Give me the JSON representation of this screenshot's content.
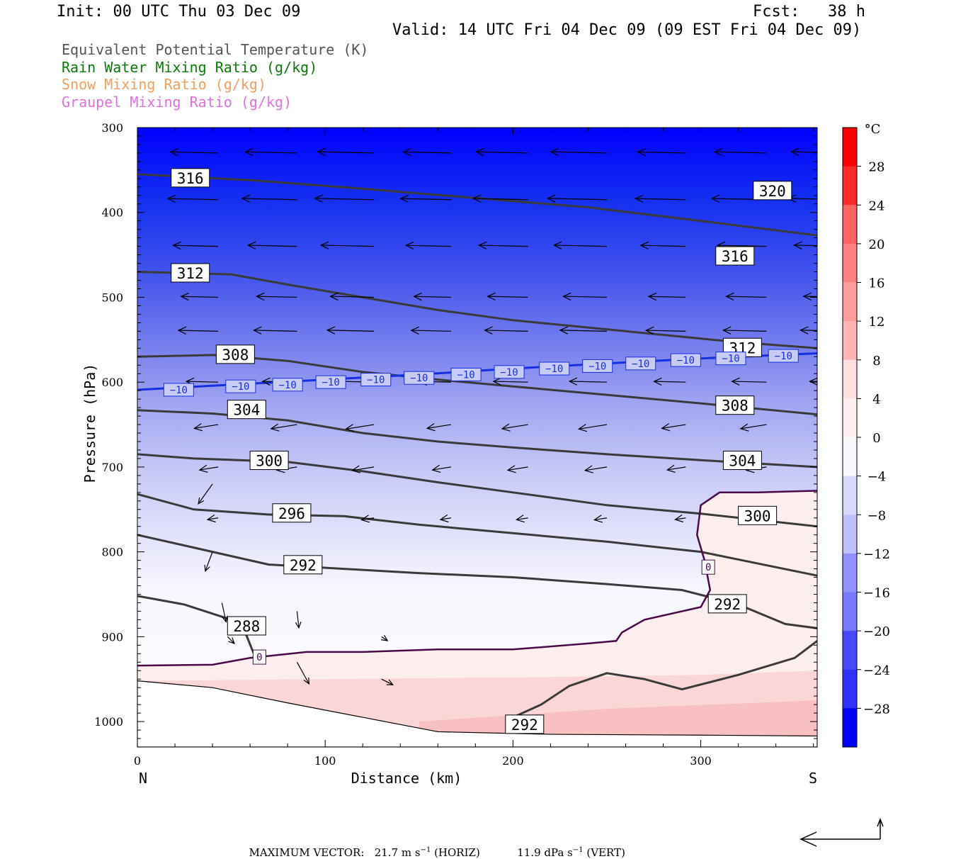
{
  "header": {
    "init": "Init: 00 UTC Thu 03 Dec 09",
    "fcst": "Fcst:   38 h",
    "valid": "Valid: 14 UTC Fri 04 Dec 09 (09 EST Fri 04 Dec 09)"
  },
  "fields": [
    {
      "label": "Equivalent Potential Temperature (K)",
      "color": "#555555"
    },
    {
      "label": "Rain Water Mixing Ratio (g/kg)",
      "color": "#0a7a0a"
    },
    {
      "label": "Snow Mixing Ratio (g/kg)",
      "color": "#f0a060"
    },
    {
      "label": "Graupel Mixing Ratio (g/kg)",
      "color": "#e070e0"
    }
  ],
  "chart_data": {
    "type": "cross-section",
    "xlabel": "Distance (km)",
    "ylabel": "Pressure (hPa)",
    "xlim": [
      0,
      362
    ],
    "ylim": [
      1030,
      300
    ],
    "x_ticks": [
      0,
      100,
      200,
      300
    ],
    "y_ticks": [
      300,
      400,
      500,
      600,
      700,
      800,
      900,
      1000
    ],
    "x_end_labels": {
      "left": "N",
      "right": "S"
    },
    "colorbar": {
      "unit": "°C",
      "labels": [
        "28",
        "24",
        "20",
        "16",
        "12",
        "8",
        "4",
        "0",
        "−4",
        "−8",
        "−12",
        "−16",
        "−20",
        "−24",
        "−28"
      ],
      "label_values": [
        28,
        24,
        20,
        16,
        12,
        8,
        4,
        0,
        -4,
        -8,
        -12,
        -16,
        -20,
        -24,
        -28
      ],
      "range": [
        -32,
        32
      ]
    },
    "theta_e_contours": [
      {
        "label": "316",
        "label_at": [
          18,
          360
        ],
        "points": [
          [
            0,
            355
          ],
          [
            60,
            362
          ],
          [
            120,
            372
          ],
          [
            180,
            383
          ],
          [
            240,
            394
          ],
          [
            300,
            410
          ],
          [
            362,
            427
          ]
        ]
      },
      {
        "label": "312",
        "label_at": [
          18,
          472
        ],
        "points": [
          [
            0,
            470
          ],
          [
            50,
            473
          ],
          [
            80,
            485
          ],
          [
            120,
            500
          ],
          [
            160,
            515
          ],
          [
            200,
            527
          ],
          [
            260,
            540
          ],
          [
            320,
            553
          ],
          [
            362,
            560
          ]
        ]
      },
      {
        "label": "308",
        "label_at": [
          42,
          568
        ],
        "points": [
          [
            0,
            570
          ],
          [
            40,
            568
          ],
          [
            80,
            575
          ],
          [
            120,
            588
          ],
          [
            160,
            597
          ],
          [
            200,
            605
          ],
          [
            250,
            615
          ],
          [
            300,
            625
          ],
          [
            362,
            638
          ]
        ]
      },
      {
        "label": "304",
        "label_at": [
          48,
          633
        ],
        "points": [
          [
            0,
            633
          ],
          [
            40,
            637
          ],
          [
            80,
            645
          ],
          [
            120,
            660
          ],
          [
            160,
            670
          ],
          [
            200,
            677
          ],
          [
            250,
            685
          ],
          [
            300,
            692
          ],
          [
            362,
            700
          ]
        ]
      },
      {
        "label": "300",
        "label_at": [
          60,
          693
        ],
        "points": [
          [
            0,
            685
          ],
          [
            30,
            690
          ],
          [
            80,
            694
          ],
          [
            120,
            705
          ],
          [
            160,
            718
          ],
          [
            200,
            730
          ],
          [
            250,
            745
          ],
          [
            300,
            755
          ],
          [
            362,
            770
          ]
        ]
      },
      {
        "label": "296",
        "label_at": [
          72,
          755
        ],
        "points": [
          [
            0,
            732
          ],
          [
            30,
            750
          ],
          [
            70,
            756
          ],
          [
            110,
            758
          ],
          [
            150,
            768
          ],
          [
            200,
            778
          ],
          [
            250,
            788
          ],
          [
            300,
            800
          ],
          [
            362,
            828
          ]
        ]
      },
      {
        "label": "292",
        "label_at": [
          78,
          816
        ],
        "points": [
          [
            0,
            780
          ],
          [
            30,
            795
          ],
          [
            70,
            815
          ],
          [
            110,
            820
          ],
          [
            150,
            825
          ],
          [
            200,
            830
          ],
          [
            250,
            838
          ],
          [
            290,
            845
          ],
          [
            320,
            862
          ],
          [
            345,
            885
          ],
          [
            362,
            890
          ]
        ]
      },
      {
        "label": "288",
        "label_at": [
          48,
          888
        ],
        "points": [
          [
            0,
            852
          ],
          [
            25,
            862
          ],
          [
            50,
            880
          ],
          [
            58,
            898
          ],
          [
            62,
            920
          ]
        ]
      },
      {
        "label": "292",
        "label_at": [
          196,
          1004
        ],
        "points": [
          [
            202,
            993
          ],
          [
            215,
            980
          ],
          [
            230,
            958
          ],
          [
            250,
            943
          ],
          [
            270,
            950
          ],
          [
            290,
            962
          ],
          [
            320,
            945
          ],
          [
            350,
            925
          ],
          [
            362,
            905
          ]
        ]
      }
    ],
    "isotherms": [
      {
        "label": "-10",
        "color": "#1530e0",
        "points": [
          [
            0,
            609
          ],
          [
            50,
            603
          ],
          [
            100,
            597
          ],
          [
            150,
            591
          ],
          [
            200,
            584
          ],
          [
            250,
            578
          ],
          [
            300,
            572
          ],
          [
            362,
            566
          ]
        ],
        "label_values": [
          "-10",
          "-10",
          "-10",
          "-10",
          "-10",
          "-10",
          "-10",
          "-10",
          "-10",
          "-10",
          "-10",
          "-10",
          "-10",
          "-10",
          "-10",
          "-10",
          "-10"
        ]
      },
      {
        "label": "0",
        "color": "#4a0a4a",
        "points": [
          [
            0,
            934
          ],
          [
            40,
            933
          ],
          [
            60,
            925
          ],
          [
            90,
            918
          ],
          [
            120,
            918
          ],
          [
            160,
            915
          ],
          [
            200,
            915
          ],
          [
            240,
            908
          ],
          [
            255,
            905
          ],
          [
            258,
            895
          ],
          [
            270,
            880
          ],
          [
            300,
            865
          ],
          [
            305,
            845
          ],
          [
            302,
            810
          ],
          [
            298,
            780
          ],
          [
            300,
            745
          ],
          [
            310,
            730
          ],
          [
            330,
            730
          ],
          [
            362,
            728
          ]
        ],
        "label_values": [
          "0",
          "0"
        ]
      }
    ]
  },
  "footer": {
    "label": "MAXIMUM VECTOR:",
    "horiz": "21.7 m s",
    "horiz_exp": "−1",
    "horiz_tag": " (HORIZ)",
    "vert": "11.9 dPa s",
    "vert_exp": "−1",
    "vert_tag": " (VERT)"
  }
}
